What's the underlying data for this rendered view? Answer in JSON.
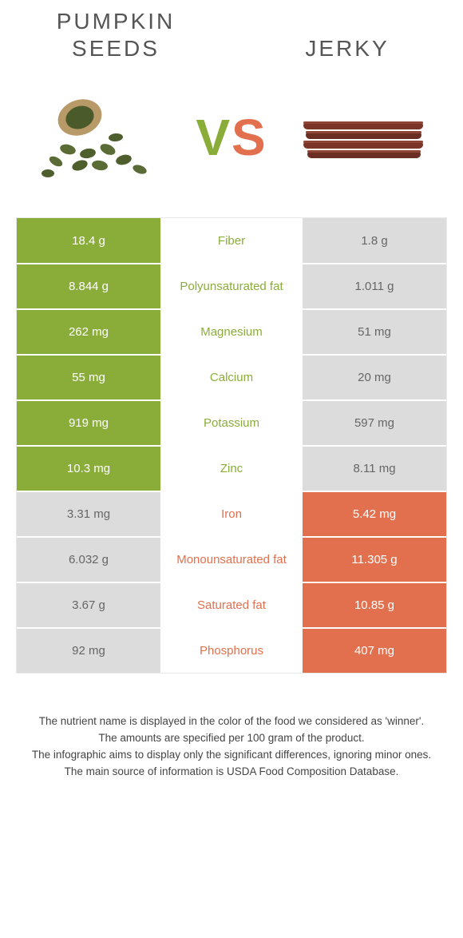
{
  "header": {
    "left_title_line1": "Pumpkin",
    "left_title_line2": "seeds",
    "right_title": "Jerky"
  },
  "vs": {
    "v": "V",
    "s": "S"
  },
  "colors": {
    "green": "#8aad3a",
    "orange": "#e2704e",
    "gray": "#dcdcdc",
    "border": "#e8e8e8",
    "text_gray": "#555"
  },
  "table": {
    "rows": [
      {
        "left": "18.4 g",
        "label": "Fiber",
        "right": "1.8 g",
        "winner": "left"
      },
      {
        "left": "8.844 g",
        "label": "Polyunsaturated fat",
        "right": "1.011 g",
        "winner": "left"
      },
      {
        "left": "262 mg",
        "label": "Magnesium",
        "right": "51 mg",
        "winner": "left"
      },
      {
        "left": "55 mg",
        "label": "Calcium",
        "right": "20 mg",
        "winner": "left"
      },
      {
        "left": "919 mg",
        "label": "Potassium",
        "right": "597 mg",
        "winner": "left"
      },
      {
        "left": "10.3 mg",
        "label": "Zinc",
        "right": "8.11 mg",
        "winner": "left"
      },
      {
        "left": "3.31 mg",
        "label": "Iron",
        "right": "5.42 mg",
        "winner": "right"
      },
      {
        "left": "6.032 g",
        "label": "Monounsaturated fat",
        "right": "11.305 g",
        "winner": "right"
      },
      {
        "left": "3.67 g",
        "label": "Saturated fat",
        "right": "10.85 g",
        "winner": "right"
      },
      {
        "left": "92 mg",
        "label": "Phosphorus",
        "right": "407 mg",
        "winner": "right"
      }
    ]
  },
  "footer": {
    "line1": "The nutrient name is displayed in the color of the food we considered as 'winner'.",
    "line2": "The amounts are specified per 100 gram of the product.",
    "line3": "The infographic aims to display only the significant differences, ignoring minor ones.",
    "line4": "The main source of information is USDA Food Composition Database."
  }
}
